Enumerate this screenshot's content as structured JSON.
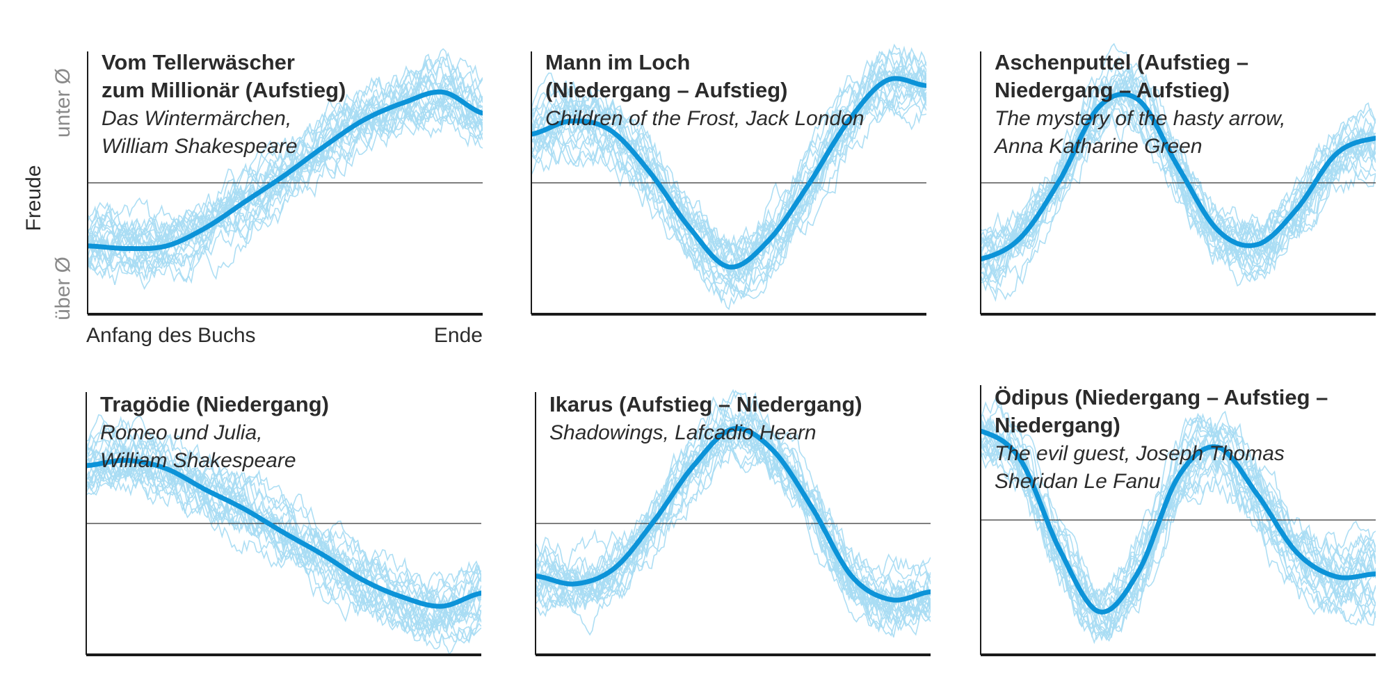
{
  "colors": {
    "mean": "#0c93d8",
    "sample": "#a9dcf3",
    "axis": "#1a1a1a",
    "ref": "#333333"
  },
  "axis_text": {
    "ylabel": "Freude",
    "y_top": "unter Ø",
    "y_bottom": "über Ø",
    "x_start": "Anfang des Buchs",
    "x_end": "Ende"
  },
  "chart_data": [
    {
      "type": "line",
      "title": [
        "Vom Tellerwäscher",
        "zum Millionär (Aufstieg)"
      ],
      "subtitle": [
        "Das Wintermärchen,",
        "William Shakespeare"
      ],
      "x": [
        0,
        0.1,
        0.2,
        0.3,
        0.4,
        0.5,
        0.6,
        0.7,
        0.8,
        0.9,
        1.0
      ],
      "ylim": [
        -1,
        1
      ],
      "series": [
        {
          "values": [
            -0.48,
            -0.5,
            -0.48,
            -0.34,
            -0.14,
            0.06,
            0.28,
            0.48,
            0.61,
            0.69,
            0.53
          ]
        }
      ],
      "reference_line": 0
    },
    {
      "type": "line",
      "title": [
        "Mann im Loch",
        "(Niedergang – Aufstieg)"
      ],
      "subtitle": [
        "Children of the Frost, Jack London"
      ],
      "x": [
        0,
        0.1,
        0.2,
        0.3,
        0.4,
        0.5,
        0.6,
        0.7,
        0.8,
        0.9,
        1.0
      ],
      "ylim": [
        -1,
        1
      ],
      "series": [
        {
          "values": [
            0.37,
            0.47,
            0.4,
            0.08,
            -0.34,
            -0.64,
            -0.44,
            -0.02,
            0.46,
            0.78,
            0.74
          ]
        }
      ],
      "reference_line": 0
    },
    {
      "type": "line",
      "title": [
        "Aschenputtel (Aufstieg –",
        "Niedergang – Aufstieg)"
      ],
      "subtitle": [
        "The mystery of the hasty arrow,",
        "Anna Katharine Green"
      ],
      "x": [
        0,
        0.1,
        0.2,
        0.3,
        0.4,
        0.5,
        0.6,
        0.7,
        0.8,
        0.9,
        1.0
      ],
      "ylim": [
        -1,
        1
      ],
      "series": [
        {
          "values": [
            -0.58,
            -0.42,
            0.02,
            0.58,
            0.63,
            0.12,
            -0.36,
            -0.47,
            -0.2,
            0.22,
            0.34
          ]
        }
      ],
      "reference_line": 0
    },
    {
      "type": "line",
      "title": [
        "Tragödie (Niedergang)"
      ],
      "subtitle": [
        "Romeo und Julia,",
        "William Shakespeare"
      ],
      "x": [
        0,
        0.1,
        0.2,
        0.3,
        0.4,
        0.5,
        0.6,
        0.7,
        0.8,
        0.9,
        1.0
      ],
      "ylim": [
        -1,
        1
      ],
      "series": [
        {
          "values": [
            0.44,
            0.48,
            0.42,
            0.26,
            0.11,
            -0.07,
            -0.24,
            -0.43,
            -0.56,
            -0.63,
            -0.53
          ]
        }
      ],
      "reference_line": 0
    },
    {
      "type": "line",
      "title": [
        "Ikarus (Aufstieg – Niedergang)"
      ],
      "subtitle": [
        "Shadowings, Lafcadio Hearn"
      ],
      "x": [
        0,
        0.1,
        0.2,
        0.3,
        0.4,
        0.5,
        0.6,
        0.7,
        0.8,
        0.9,
        1.0
      ],
      "ylim": [
        -1,
        1
      ],
      "series": [
        {
          "values": [
            -0.4,
            -0.46,
            -0.34,
            0.02,
            0.44,
            0.72,
            0.56,
            0.12,
            -0.4,
            -0.58,
            -0.52
          ]
        }
      ],
      "reference_line": 0
    },
    {
      "type": "line",
      "title": [
        "Ödipus (Niedergang – Aufstieg –",
        "Niedergang)"
      ],
      "subtitle": [
        "The evil guest, Joseph Thomas",
        "Sheridan Le Fanu"
      ],
      "x": [
        0,
        0.1,
        0.2,
        0.3,
        0.4,
        0.5,
        0.6,
        0.7,
        0.8,
        0.9,
        1.0
      ],
      "ylim": [
        -1,
        1
      ],
      "series": [
        {
          "values": [
            0.66,
            0.45,
            -0.22,
            -0.68,
            -0.38,
            0.32,
            0.54,
            0.19,
            -0.24,
            -0.42,
            -0.4
          ]
        }
      ],
      "reference_line": 0
    }
  ]
}
